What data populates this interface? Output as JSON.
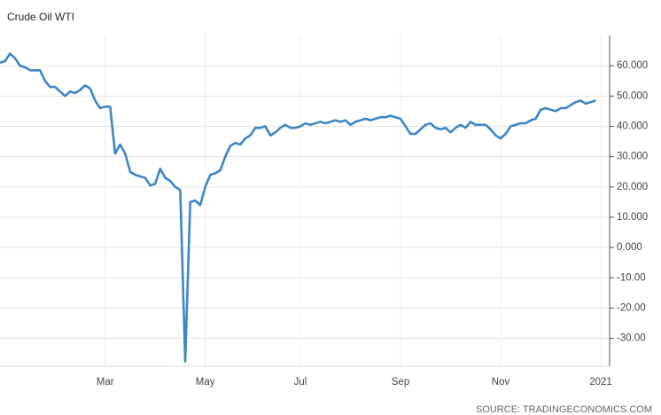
{
  "chart_data": {
    "type": "line",
    "title": "Crude Oil WTI",
    "source": "SOURCE: TRADINGECONOMICS.COM",
    "categories": [
      null,
      null,
      null,
      null,
      null,
      null,
      null,
      null,
      null,
      null,
      null,
      null,
      null,
      null,
      null,
      null,
      null,
      null,
      null,
      null,
      null,
      "Mar",
      null,
      null,
      null,
      null,
      null,
      null,
      null,
      null,
      null,
      null,
      null,
      null,
      null,
      null,
      null,
      null,
      null,
      null,
      null,
      "May",
      null,
      null,
      null,
      null,
      null,
      null,
      null,
      null,
      null,
      null,
      null,
      null,
      null,
      null,
      null,
      null,
      null,
      null,
      "Jul",
      null,
      null,
      null,
      null,
      null,
      null,
      null,
      null,
      null,
      null,
      null,
      null,
      null,
      null,
      null,
      null,
      null,
      null,
      null,
      "Sep",
      null,
      null,
      null,
      null,
      null,
      null,
      null,
      null,
      null,
      null,
      null,
      null,
      null,
      null,
      null,
      null,
      null,
      null,
      null,
      "Nov",
      null,
      null,
      null,
      null,
      null,
      null,
      null,
      null,
      null,
      null,
      null,
      null,
      null,
      null,
      null,
      null,
      null,
      null,
      null,
      "2021"
    ],
    "values": [
      61,
      61.5,
      64,
      62.5,
      60,
      59.5,
      58.5,
      58.5,
      58.5,
      55,
      53,
      53,
      51.5,
      50,
      51.5,
      51,
      52,
      53.5,
      52.5,
      48.5,
      46,
      46.5,
      46.5,
      31,
      34,
      31,
      25,
      24,
      23.5,
      23,
      20.5,
      21,
      26,
      23,
      22,
      20,
      19,
      -37.63,
      15,
      15.5,
      14,
      20,
      24,
      24.5,
      25.5,
      30,
      33.5,
      34.5,
      34,
      36,
      37,
      39.5,
      39.5,
      40,
      37,
      38,
      39.5,
      40.5,
      39.5,
      39.5,
      40,
      41,
      40.5,
      41,
      41.5,
      41,
      41.5,
      42,
      41.5,
      42,
      40.5,
      41.5,
      42,
      42.5,
      42,
      42.5,
      43,
      43,
      43.5,
      43,
      42.5,
      40,
      37.5,
      37.5,
      39,
      40.5,
      41,
      39.5,
      39,
      39.5,
      38,
      39.5,
      40.5,
      39.5,
      41.5,
      40.5,
      40.5,
      40.5,
      39,
      37,
      36,
      37.5,
      40,
      40.5,
      41,
      41,
      42,
      42.5,
      45.5,
      46,
      45.5,
      45,
      46,
      46,
      47,
      48,
      48.5,
      47.5,
      48,
      48.5,
      null
    ],
    "color": "#3d86c6",
    "ylim": [
      -39.2,
      70
    ],
    "yticks": [
      {
        "value": 60,
        "label": "60.000"
      },
      {
        "value": 50,
        "label": "50.000"
      },
      {
        "value": 40,
        "label": "40.000"
      },
      {
        "value": 30,
        "label": "30.000"
      },
      {
        "value": 20,
        "label": "20.000"
      },
      {
        "value": 10,
        "label": "10.000"
      },
      {
        "value": 0,
        "label": "0.000"
      },
      {
        "value": -10,
        "label": "-10.00"
      },
      {
        "value": -20,
        "label": "-20.00"
      },
      {
        "value": -30,
        "label": "-30.00"
      }
    ],
    "grid": true
  }
}
